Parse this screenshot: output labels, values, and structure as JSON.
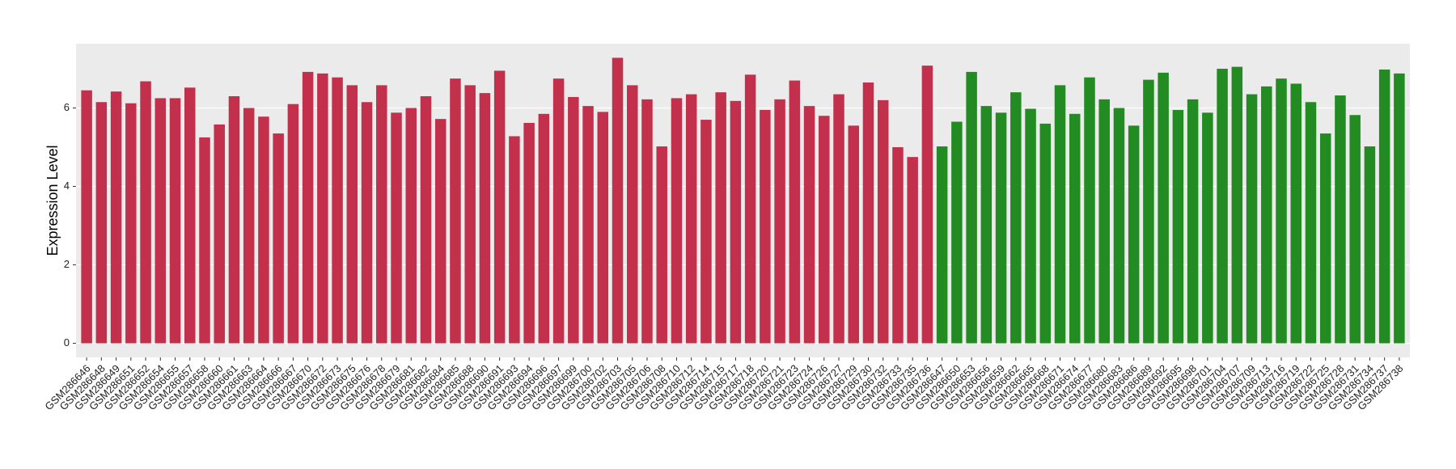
{
  "chart_data": {
    "type": "bar",
    "y_label": "Expression Level",
    "categories": [
      "GSM286646",
      "GSM286648",
      "GSM286649",
      "GSM286651",
      "GSM286652",
      "GSM286654",
      "GSM286655",
      "GSM286657",
      "GSM286658",
      "GSM286660",
      "GSM286661",
      "GSM286663",
      "GSM286664",
      "GSM286666",
      "GSM286667",
      "GSM286670",
      "GSM286672",
      "GSM286673",
      "GSM286675",
      "GSM286676",
      "GSM286678",
      "GSM286679",
      "GSM286681",
      "GSM286682",
      "GSM286684",
      "GSM286685",
      "GSM286688",
      "GSM286690",
      "GSM286691",
      "GSM286693",
      "GSM286694",
      "GSM286696",
      "GSM286697",
      "GSM286699",
      "GSM286700",
      "GSM286702",
      "GSM286703",
      "GSM286705",
      "GSM286706",
      "GSM286708",
      "GSM286710",
      "GSM286712",
      "GSM286714",
      "GSM286715",
      "GSM286717",
      "GSM286718",
      "GSM286720",
      "GSM286721",
      "GSM286723",
      "GSM286724",
      "GSM286726",
      "GSM286727",
      "GSM286729",
      "GSM286730",
      "GSM286732",
      "GSM286733",
      "GSM286735",
      "GSM286736",
      "GSM286647",
      "GSM286650",
      "GSM286653",
      "GSM286656",
      "GSM286659",
      "GSM286662",
      "GSM286665",
      "GSM286668",
      "GSM286671",
      "GSM286674",
      "GSM286677",
      "GSM286680",
      "GSM286683",
      "GSM286686",
      "GSM286689",
      "GSM286692",
      "GSM286695",
      "GSM286698",
      "GSM286701",
      "GSM286704",
      "GSM286707",
      "GSM286709",
      "GSM286713",
      "GSM286716",
      "GSM286719",
      "GSM286722",
      "GSM286725",
      "GSM286728",
      "GSM286731",
      "GSM286734",
      "GSM286737",
      "GSM286738"
    ],
    "values": [
      6.45,
      6.15,
      6.42,
      6.12,
      6.68,
      6.25,
      6.25,
      6.52,
      5.25,
      5.58,
      6.3,
      6.0,
      5.78,
      5.35,
      6.1,
      6.92,
      6.88,
      6.78,
      6.58,
      6.15,
      6.58,
      5.88,
      6.0,
      6.3,
      5.72,
      6.75,
      6.58,
      6.38,
      6.95,
      5.28,
      5.62,
      5.85,
      6.75,
      6.28,
      6.05,
      5.9,
      7.28,
      6.58,
      6.22,
      5.02,
      6.25,
      6.35,
      5.7,
      6.4,
      6.18,
      6.85,
      5.95,
      6.22,
      6.7,
      6.05,
      5.8,
      6.35,
      5.55,
      6.65,
      6.2,
      5.0,
      4.75,
      7.08,
      5.02,
      5.65,
      6.92,
      6.05,
      5.88,
      6.4,
      5.98,
      5.6,
      6.58,
      5.85,
      6.78,
      6.22,
      6.0,
      5.55,
      6.72,
      6.9,
      5.95,
      6.22,
      5.88,
      7.0,
      7.05,
      6.35,
      6.55,
      6.75,
      6.62,
      6.15,
      5.35,
      6.32,
      5.82,
      5.02,
      6.98,
      6.88
    ],
    "colors": [
      "#c3304b",
      "#c3304b",
      "#c3304b",
      "#c3304b",
      "#c3304b",
      "#c3304b",
      "#c3304b",
      "#c3304b",
      "#c3304b",
      "#c3304b",
      "#c3304b",
      "#c3304b",
      "#c3304b",
      "#c3304b",
      "#c3304b",
      "#c3304b",
      "#c3304b",
      "#c3304b",
      "#c3304b",
      "#c3304b",
      "#c3304b",
      "#c3304b",
      "#c3304b",
      "#c3304b",
      "#c3304b",
      "#c3304b",
      "#c3304b",
      "#c3304b",
      "#c3304b",
      "#c3304b",
      "#c3304b",
      "#c3304b",
      "#c3304b",
      "#c3304b",
      "#c3304b",
      "#c3304b",
      "#c3304b",
      "#c3304b",
      "#c3304b",
      "#c3304b",
      "#c3304b",
      "#c3304b",
      "#c3304b",
      "#c3304b",
      "#c3304b",
      "#c3304b",
      "#c3304b",
      "#c3304b",
      "#c3304b",
      "#c3304b",
      "#c3304b",
      "#c3304b",
      "#c3304b",
      "#c3304b",
      "#c3304b",
      "#c3304b",
      "#c3304b",
      "#c3304b",
      "#228b22",
      "#228b22",
      "#228b22",
      "#228b22",
      "#228b22",
      "#228b22",
      "#228b22",
      "#228b22",
      "#228b22",
      "#228b22",
      "#228b22",
      "#228b22",
      "#228b22",
      "#228b22",
      "#228b22",
      "#228b22",
      "#228b22",
      "#228b22",
      "#228b22",
      "#228b22",
      "#228b22",
      "#228b22",
      "#228b22",
      "#228b22",
      "#228b22",
      "#228b22",
      "#228b22",
      "#228b22",
      "#228b22",
      "#228b22",
      "#228b22",
      "#228b22"
    ],
    "ylim": [
      -0.36,
      7.64
    ],
    "yticks": [
      0,
      2,
      4,
      6
    ],
    "grid": true
  }
}
